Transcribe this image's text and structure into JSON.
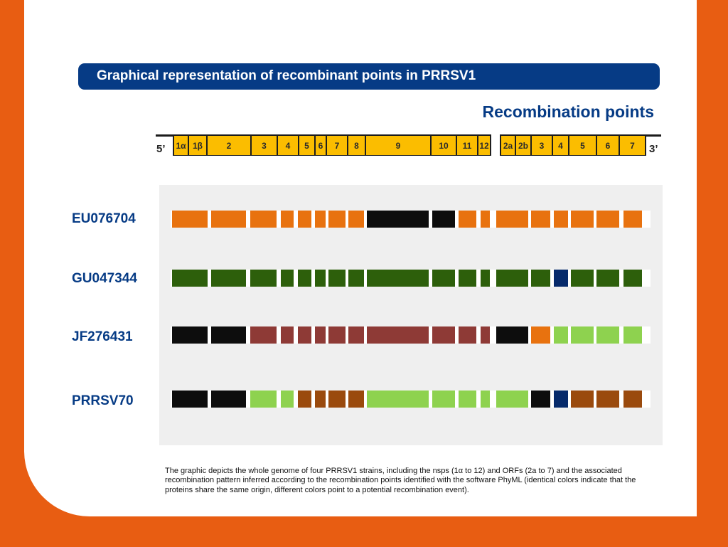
{
  "banner": {
    "title": "Graphical representation of recombinant points in PRRSV1"
  },
  "section_title": "Recombination points",
  "genome": {
    "five_prime": "5’",
    "three_prime": "3’",
    "segments": [
      "1α",
      "1β",
      "2",
      "3",
      "4",
      "5",
      "6",
      "7",
      "8",
      "9",
      "10",
      "11",
      "12",
      "2a",
      "2b",
      "3",
      "4",
      "5",
      "6",
      "7"
    ]
  },
  "colors": {
    "orange": "#e8720f",
    "black": "#0d0d0d",
    "dark_green": "#2d5f0b",
    "navy": "#062a6b",
    "dark_red": "#8e3a36",
    "light_green": "#8ed24f",
    "brown": "#9a4a0d",
    "segment_yellow": "#fbbd00",
    "banner_blue": "#063b85",
    "frame_orange": "#e85d12"
  },
  "strains": [
    {
      "name": "EU076704",
      "blocks": [
        "orange",
        "orange",
        "orange",
        "orange",
        "orange",
        "orange",
        "orange",
        "orange",
        "black",
        "black",
        "orange",
        "orange",
        "orange",
        "orange",
        "orange",
        "orange",
        "orange",
        "orange"
      ]
    },
    {
      "name": "GU047344",
      "blocks": [
        "dark_green",
        "dark_green",
        "dark_green",
        "dark_green",
        "dark_green",
        "dark_green",
        "dark_green",
        "dark_green",
        "dark_green",
        "dark_green",
        "dark_green",
        "dark_green",
        "dark_green",
        "dark_green",
        "navy",
        "dark_green",
        "dark_green",
        "dark_green"
      ]
    },
    {
      "name": "JF276431",
      "blocks": [
        "black",
        "black",
        "dark_red",
        "dark_red",
        "dark_red",
        "dark_red",
        "dark_red",
        "dark_red",
        "dark_red",
        "dark_red",
        "dark_red",
        "dark_red",
        "black",
        "orange",
        "light_green",
        "light_green",
        "light_green",
        "light_green"
      ]
    },
    {
      "name": "PRRSV70",
      "blocks": [
        "black",
        "black",
        "light_green",
        "light_green",
        "brown",
        "brown",
        "brown",
        "brown",
        "light_green",
        "light_green",
        "light_green",
        "light_green",
        "light_green",
        "black",
        "navy",
        "brown",
        "brown",
        "brown"
      ]
    }
  ],
  "caption": "The graphic depicts the whole genome of four PRRSV1 strains, including the nsps (1α to 12) and ORFs (2a to 7) and the associated recombination pattern inferred according to the recombination points identified with the software PhyML (identical colors indicate that the proteins share the same origin, different colors point to a potential recombination event)."
}
